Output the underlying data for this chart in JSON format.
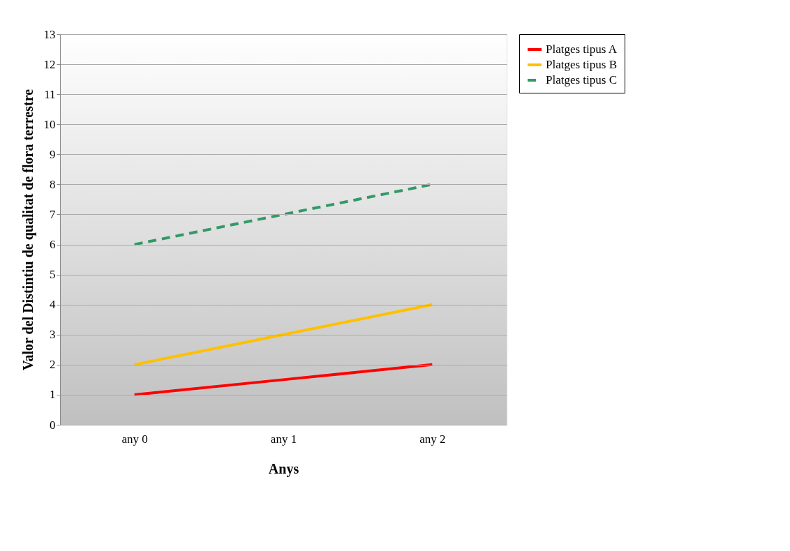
{
  "chart_data": {
    "type": "line",
    "xlabel": "Anys",
    "ylabel": "Valor del Distintiu de qualitat de flora terrestre",
    "categories": [
      "any 0",
      "any 1",
      "any 2"
    ],
    "series": [
      {
        "name": "Platges tipus A",
        "color": "#ff0000",
        "values": [
          1,
          1.5,
          2
        ],
        "line_style": "solid"
      },
      {
        "name": "Platges tipus B",
        "color": "#ffc000",
        "values": [
          2,
          3,
          4
        ],
        "line_style": "solid"
      },
      {
        "name": "Platges tipus C",
        "color": "#339966",
        "values": [
          6,
          7,
          8
        ],
        "line_style": "dashed"
      }
    ],
    "ylim": [
      0,
      13
    ],
    "yticks": [
      0,
      1,
      2,
      3,
      4,
      5,
      6,
      7,
      8,
      9,
      10,
      11,
      12,
      13
    ],
    "grid": "y",
    "legend": "right",
    "marker": "none"
  }
}
